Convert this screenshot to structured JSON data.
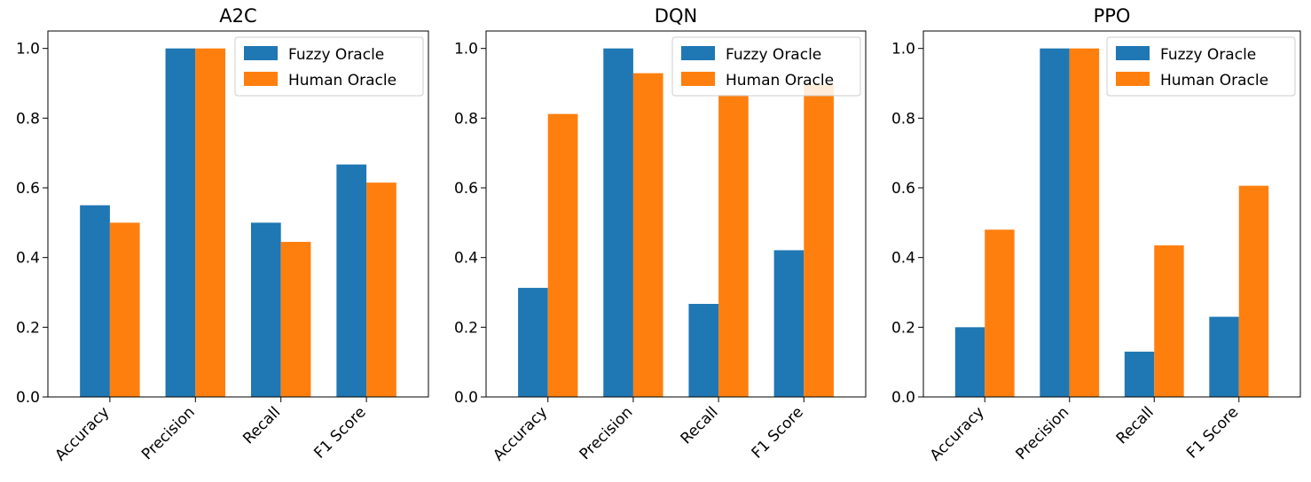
{
  "chart_data": [
    {
      "type": "bar",
      "title": "A2C",
      "categories": [
        "Accuracy",
        "Precision",
        "Recall",
        "F1 Score"
      ],
      "series": [
        {
          "name": "Fuzzy Oracle",
          "color": "#1f77b4",
          "values": [
            0.55,
            1.0,
            0.5,
            0.667
          ]
        },
        {
          "name": "Human Oracle",
          "color": "#ff7f0e",
          "values": [
            0.5,
            1.0,
            0.445,
            0.615
          ]
        }
      ],
      "yticks": [
        "0.0",
        "0.2",
        "0.4",
        "0.6",
        "0.8",
        "1.0"
      ],
      "ylim": [
        0,
        1.05
      ],
      "legend_position": "upper-right"
    },
    {
      "type": "bar",
      "title": "DQN",
      "categories": [
        "Accuracy",
        "Precision",
        "Recall",
        "F1 Score"
      ],
      "series": [
        {
          "name": "Fuzzy Oracle",
          "color": "#1f77b4",
          "values": [
            0.313,
            1.0,
            0.267,
            0.421
          ]
        },
        {
          "name": "Human Oracle",
          "color": "#ff7f0e",
          "values": [
            0.812,
            0.929,
            0.867,
            0.897
          ]
        }
      ],
      "yticks": [
        "0.0",
        "0.2",
        "0.4",
        "0.6",
        "0.8",
        "1.0"
      ],
      "ylim": [
        0,
        1.05
      ],
      "legend_position": "upper-right"
    },
    {
      "type": "bar",
      "title": "PPO",
      "categories": [
        "Accuracy",
        "Precision",
        "Recall",
        "F1 Score"
      ],
      "series": [
        {
          "name": "Fuzzy Oracle",
          "color": "#1f77b4",
          "values": [
            0.2,
            1.0,
            0.13,
            0.23
          ]
        },
        {
          "name": "Human Oracle",
          "color": "#ff7f0e",
          "values": [
            0.48,
            1.0,
            0.435,
            0.606
          ]
        }
      ],
      "yticks": [
        "0.0",
        "0.2",
        "0.4",
        "0.6",
        "0.8",
        "1.0"
      ],
      "ylim": [
        0,
        1.05
      ],
      "legend_position": "upper-right"
    }
  ]
}
